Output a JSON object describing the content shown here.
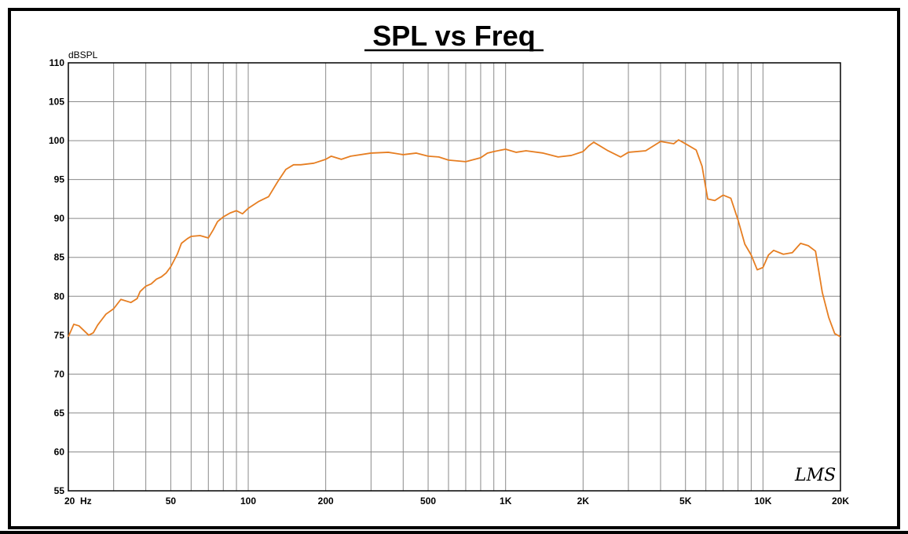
{
  "chart_data": {
    "type": "line",
    "title": "SPL vs Freq",
    "ylabel": "dBSPL",
    "xlabel": "",
    "x_scale": "log",
    "xlim": [
      20,
      20000
    ],
    "ylim": [
      55,
      110
    ],
    "grid": true,
    "x_tick_labels": [
      {
        "value": 20,
        "label": "20  Hz"
      },
      {
        "value": 50,
        "label": "50"
      },
      {
        "value": 100,
        "label": "100"
      },
      {
        "value": 200,
        "label": "200"
      },
      {
        "value": 500,
        "label": "500"
      },
      {
        "value": 1000,
        "label": "1K"
      },
      {
        "value": 2000,
        "label": "2K"
      },
      {
        "value": 5000,
        "label": "5K"
      },
      {
        "value": 10000,
        "label": "10K"
      },
      {
        "value": 20000,
        "label": "20K"
      }
    ],
    "x_minor_gridlines": [
      30,
      40,
      60,
      70,
      80,
      90,
      300,
      400,
      600,
      700,
      800,
      900,
      3000,
      4000,
      6000,
      7000,
      8000,
      9000
    ],
    "y_ticks": [
      55,
      60,
      65,
      70,
      75,
      80,
      85,
      90,
      95,
      100,
      105,
      110
    ],
    "series": [
      {
        "color": "#e67e22",
        "x": [
          20,
          21,
          22,
          24,
          25,
          26,
          28,
          30,
          32,
          35,
          37,
          38,
          40,
          42,
          44,
          46,
          48,
          50,
          53,
          55,
          58,
          60,
          65,
          70,
          73,
          76,
          80,
          85,
          90,
          95,
          100,
          110,
          120,
          130,
          140,
          150,
          160,
          180,
          200,
          210,
          230,
          250,
          300,
          350,
          400,
          450,
          500,
          550,
          600,
          700,
          800,
          850,
          900,
          1000,
          1100,
          1200,
          1400,
          1600,
          1800,
          2000,
          2100,
          2200,
          2500,
          2800,
          3000,
          3500,
          4000,
          4500,
          4700,
          5000,
          5500,
          5800,
          6100,
          6500,
          7000,
          7500,
          8000,
          8500,
          9000,
          9500,
          10000,
          10500,
          11000,
          12000,
          13000,
          14000,
          15000,
          16000,
          17000,
          18000,
          19000,
          20000
        ],
        "y": [
          74.8,
          76.4,
          76.2,
          75.0,
          75.3,
          76.3,
          77.7,
          78.4,
          79.6,
          79.2,
          79.7,
          80.6,
          81.3,
          81.6,
          82.2,
          82.5,
          83.0,
          83.8,
          85.4,
          86.8,
          87.4,
          87.7,
          87.8,
          87.5,
          88.5,
          89.6,
          90.2,
          90.7,
          91.0,
          90.6,
          91.3,
          92.2,
          92.8,
          94.7,
          96.3,
          96.9,
          96.9,
          97.1,
          97.6,
          98.0,
          97.6,
          98.0,
          98.4,
          98.5,
          98.2,
          98.4,
          98.0,
          97.9,
          97.5,
          97.3,
          97.8,
          98.4,
          98.6,
          98.9,
          98.5,
          98.7,
          98.4,
          97.9,
          98.1,
          98.6,
          99.3,
          99.8,
          98.7,
          97.9,
          98.5,
          98.7,
          99.9,
          99.6,
          100.1,
          99.6,
          98.8,
          96.7,
          92.5,
          92.3,
          93.0,
          92.6,
          89.8,
          86.7,
          85.3,
          83.4,
          83.7,
          85.3,
          85.9,
          85.4,
          85.6,
          86.8,
          86.5,
          85.8,
          80.5,
          77.3,
          75.2,
          74.8
        ]
      }
    ],
    "annotation": "LMS"
  }
}
